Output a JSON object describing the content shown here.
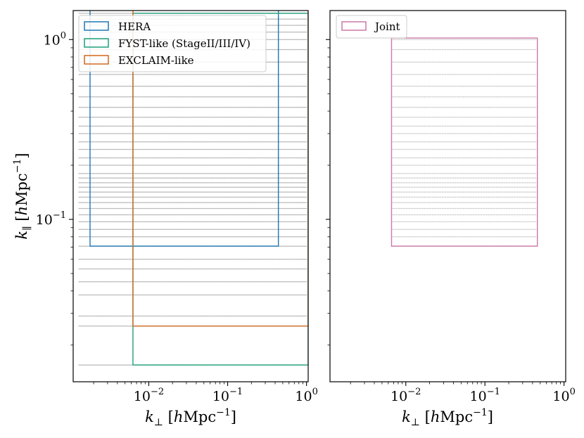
{
  "chart_data": [
    {
      "type": "scatter",
      "panel": "left",
      "xscale": "log",
      "yscale": "log",
      "xlim": [
        0.0011,
        1.05
      ],
      "ylim": [
        0.0125,
        1.45
      ],
      "xlabel_parts": [
        "k",
        "⊥",
        " [",
        "h",
        "Mpc",
        "−1",
        "]"
      ],
      "ylabel_parts": [
        "k",
        "∥",
        " [",
        "h",
        "Mpc",
        "−1",
        "]"
      ],
      "x_ticks": [
        {
          "value": 0.01,
          "base": "10",
          "exp": "−2"
        },
        {
          "value": 0.1,
          "base": "10",
          "exp": "−1"
        },
        {
          "value": 1,
          "base": "10",
          "exp": "0"
        }
      ],
      "y_ticks": [
        {
          "value": 0.1,
          "base": "10",
          "exp": "−1"
        },
        {
          "value": 1,
          "base": "10",
          "exp": "0"
        }
      ],
      "series": [
        {
          "name": "HERA",
          "color": "#1f77b4",
          "rect": {
            "kperp": [
              0.0018,
              0.44
            ],
            "kpar": [
              0.071,
              1.5
            ]
          }
        },
        {
          "name": "FYST-like (StageII/III/IV)",
          "color": "#1fa07a",
          "rect": {
            "kperp": [
              0.0063,
              1.05
            ],
            "kpar": [
              0.0155,
              1.4
            ]
          }
        },
        {
          "name": "EXCLAIM-like",
          "color": "#d2691e",
          "rect": {
            "kperp": [
              0.0063,
              1.05
            ],
            "kpar": [
              0.0255,
              1.5
            ]
          }
        }
      ],
      "grid_points": {
        "description": "sampled (k_perp, k_par) modes shown as faint black dots",
        "kperp": {
          "min": 0.0013,
          "max": 1.0,
          "n": 230
        },
        "kpar_levels": [
          0.0155,
          0.0255,
          0.029,
          0.038,
          0.045,
          0.053,
          0.06,
          0.071,
          0.08,
          0.088,
          0.097,
          0.106,
          0.115,
          0.124,
          0.133,
          0.142,
          0.151,
          0.16,
          0.17,
          0.18,
          0.2,
          0.22,
          0.245,
          0.27,
          0.3,
          0.33,
          0.37,
          0.42,
          0.48,
          0.55,
          0.64,
          0.75,
          0.88,
          1.0,
          1.1,
          1.2,
          1.3,
          1.4
        ]
      }
    },
    {
      "type": "scatter",
      "panel": "right",
      "xscale": "log",
      "yscale": "log",
      "xlim": [
        0.0011,
        1.05
      ],
      "ylim": [
        0.0125,
        1.45
      ],
      "xlabel_parts": [
        "k",
        "⊥",
        " [",
        "h",
        "Mpc",
        "−1",
        "]"
      ],
      "x_ticks": [
        {
          "value": 0.01,
          "base": "10",
          "exp": "−2"
        },
        {
          "value": 0.1,
          "base": "10",
          "exp": "−1"
        },
        {
          "value": 1,
          "base": "10",
          "exp": "0"
        }
      ],
      "series": [
        {
          "name": "Joint",
          "color": "#cc79a7",
          "rect": {
            "kperp": [
              0.0066,
              0.46
            ],
            "kpar": [
              0.071,
              1.02
            ]
          }
        }
      ],
      "grid_points": {
        "description": "sampled (k_perp, k_par) modes shown as faint black dots",
        "kperp": {
          "min": 0.0066,
          "max": 0.46,
          "n": 90
        },
        "kpar_levels": [
          0.071,
          0.08,
          0.088,
          0.097,
          0.106,
          0.115,
          0.124,
          0.133,
          0.142,
          0.151,
          0.16,
          0.17,
          0.18,
          0.2,
          0.22,
          0.245,
          0.27,
          0.3,
          0.33,
          0.37,
          0.42,
          0.48,
          0.55,
          0.64,
          0.75,
          0.88,
          1.0
        ]
      }
    }
  ]
}
